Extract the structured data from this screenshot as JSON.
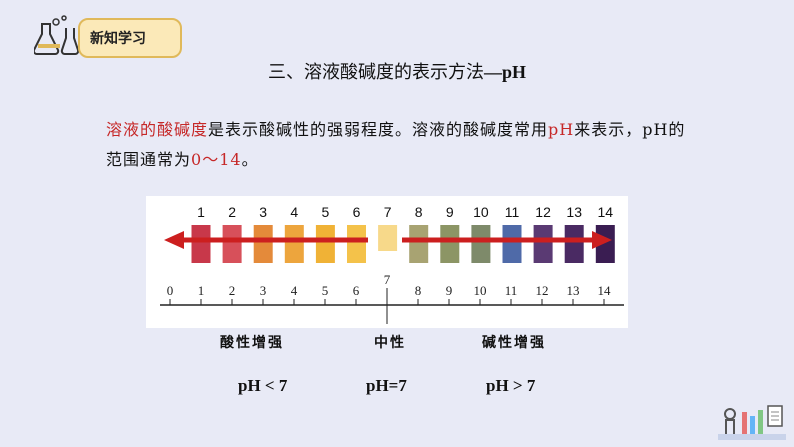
{
  "badge": {
    "label": "新知学习"
  },
  "title": {
    "prefix": "三、溶液酸碱度的表示方法",
    "dash": "—",
    "ph": "pH"
  },
  "paragraph": {
    "term": "溶液的酸碱度",
    "part1": "是表示酸碱性的强弱程度。溶液的酸碱度常用",
    "ph": "pH",
    "part2": "来表示，pH的范围通常为",
    "range": "0～14",
    "end": "。"
  },
  "colors": {
    "accent_red": "#c62828",
    "arrow": "#cc1f1f",
    "strip_colors": [
      "#c8384a",
      "#d7505a",
      "#e48a3a",
      "#eda53d",
      "#f0b236",
      "#f4c24a",
      "#f7d98a",
      "#a8a372",
      "#8c9565",
      "#7e8a6a",
      "#4f6aa8",
      "#5a3a73",
      "#4a2a63",
      "#3a1d52"
    ]
  },
  "strip": {
    "numbers": [
      "1",
      "2",
      "3",
      "4",
      "5",
      "6",
      "7",
      "8",
      "9",
      "10",
      "11",
      "12",
      "13",
      "14"
    ]
  },
  "scale": {
    "ticks": [
      "0",
      "1",
      "2",
      "3",
      "4",
      "5",
      "6",
      "7",
      "8",
      "9",
      "10",
      "11",
      "12",
      "13",
      "14"
    ],
    "neutral_mark": "7"
  },
  "labels": {
    "acid": "酸性增强",
    "neutral": "中性",
    "base": "碱性增强",
    "ph_lt": "pH < 7",
    "ph_eq": "pH=7",
    "ph_gt": "pH > 7"
  }
}
